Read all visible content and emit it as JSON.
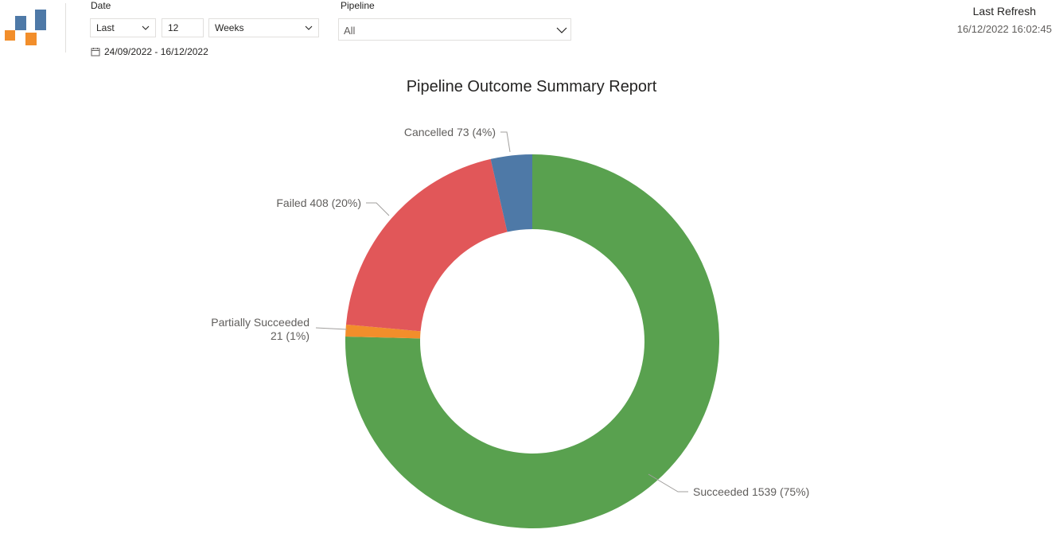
{
  "filters": {
    "date": {
      "label": "Date",
      "relative": "Last",
      "count": "12",
      "unit": "Weeks",
      "range": "24/09/2022 - 16/12/2022"
    },
    "pipeline": {
      "label": "Pipeline",
      "selected": "All"
    }
  },
  "refresh": {
    "label": "Last Refresh",
    "value": "16/12/2022 16:02:45"
  },
  "colors": {
    "logo_blue": "#4e79a7",
    "logo_orange": "#f28e2b"
  },
  "chart_data": {
    "type": "pie",
    "title": "Pipeline Outcome Summary Report",
    "donut": true,
    "slices": [
      {
        "name": "Succeeded",
        "value": 1539,
        "percent": "75%",
        "label": "Succeeded 1539 (75%)",
        "color": "#59a14f"
      },
      {
        "name": "Partially Succeeded",
        "value": 21,
        "percent": "1%",
        "label_lines": [
          "Partially Succeeded",
          "21 (1%)"
        ],
        "color": "#f28e2b"
      },
      {
        "name": "Failed",
        "value": 408,
        "percent": "20%",
        "label": "Failed 408 (20%)",
        "color": "#e15759"
      },
      {
        "name": "Cancelled",
        "value": 73,
        "percent": "4%",
        "label": "Cancelled 73 (4%)",
        "color": "#4e79a7"
      }
    ]
  }
}
